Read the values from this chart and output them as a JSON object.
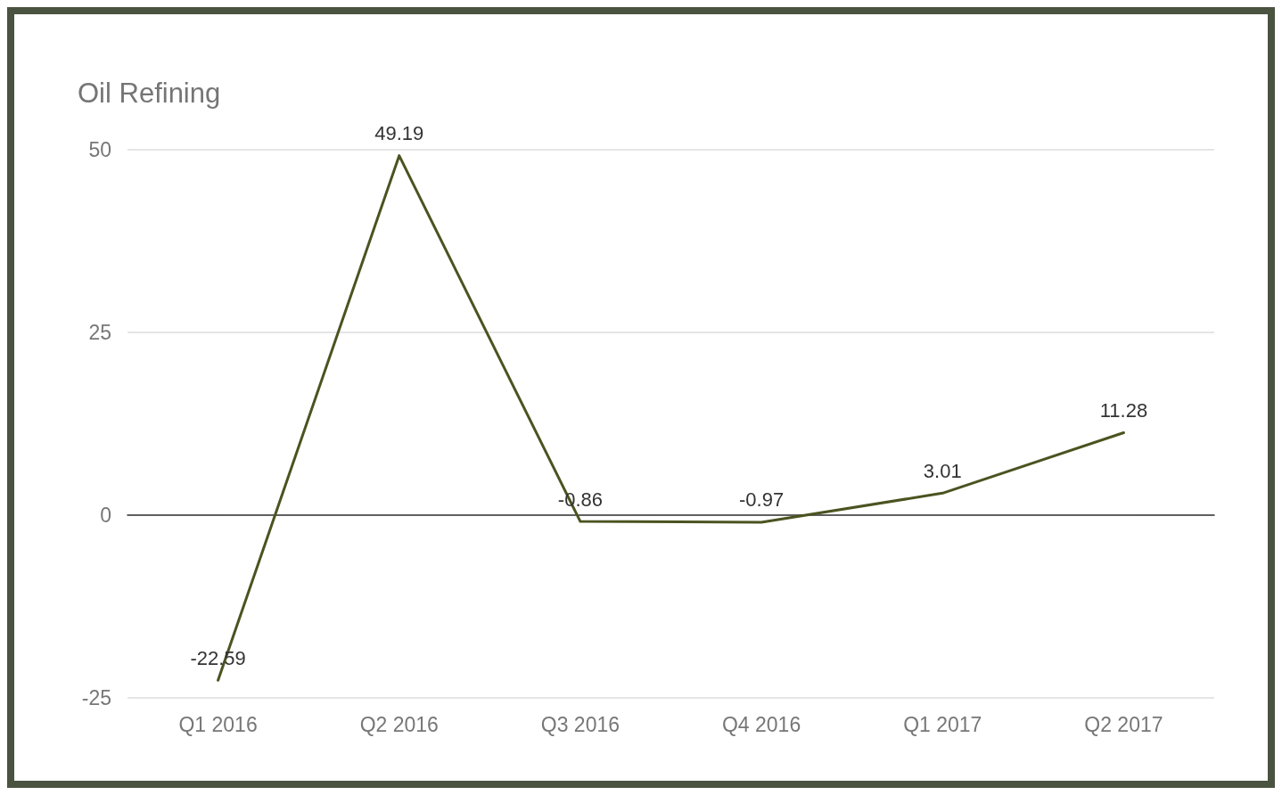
{
  "chart_data": {
    "type": "line",
    "title": "Oil Refining",
    "categories": [
      "Q1 2016",
      "Q2 2016",
      "Q3 2016",
      "Q4 2016",
      "Q1 2017",
      "Q2 2017"
    ],
    "series": [
      {
        "color": "#4b5320",
        "values": [
          -22.59,
          49.19,
          -0.86,
          -0.97,
          3.01,
          11.28
        ]
      }
    ],
    "ylim": [
      -25,
      50
    ],
    "yticks": [
      -25,
      0,
      25,
      50
    ],
    "grid": "y",
    "marker": "none",
    "line_style": "solid",
    "data_labels": true
  }
}
